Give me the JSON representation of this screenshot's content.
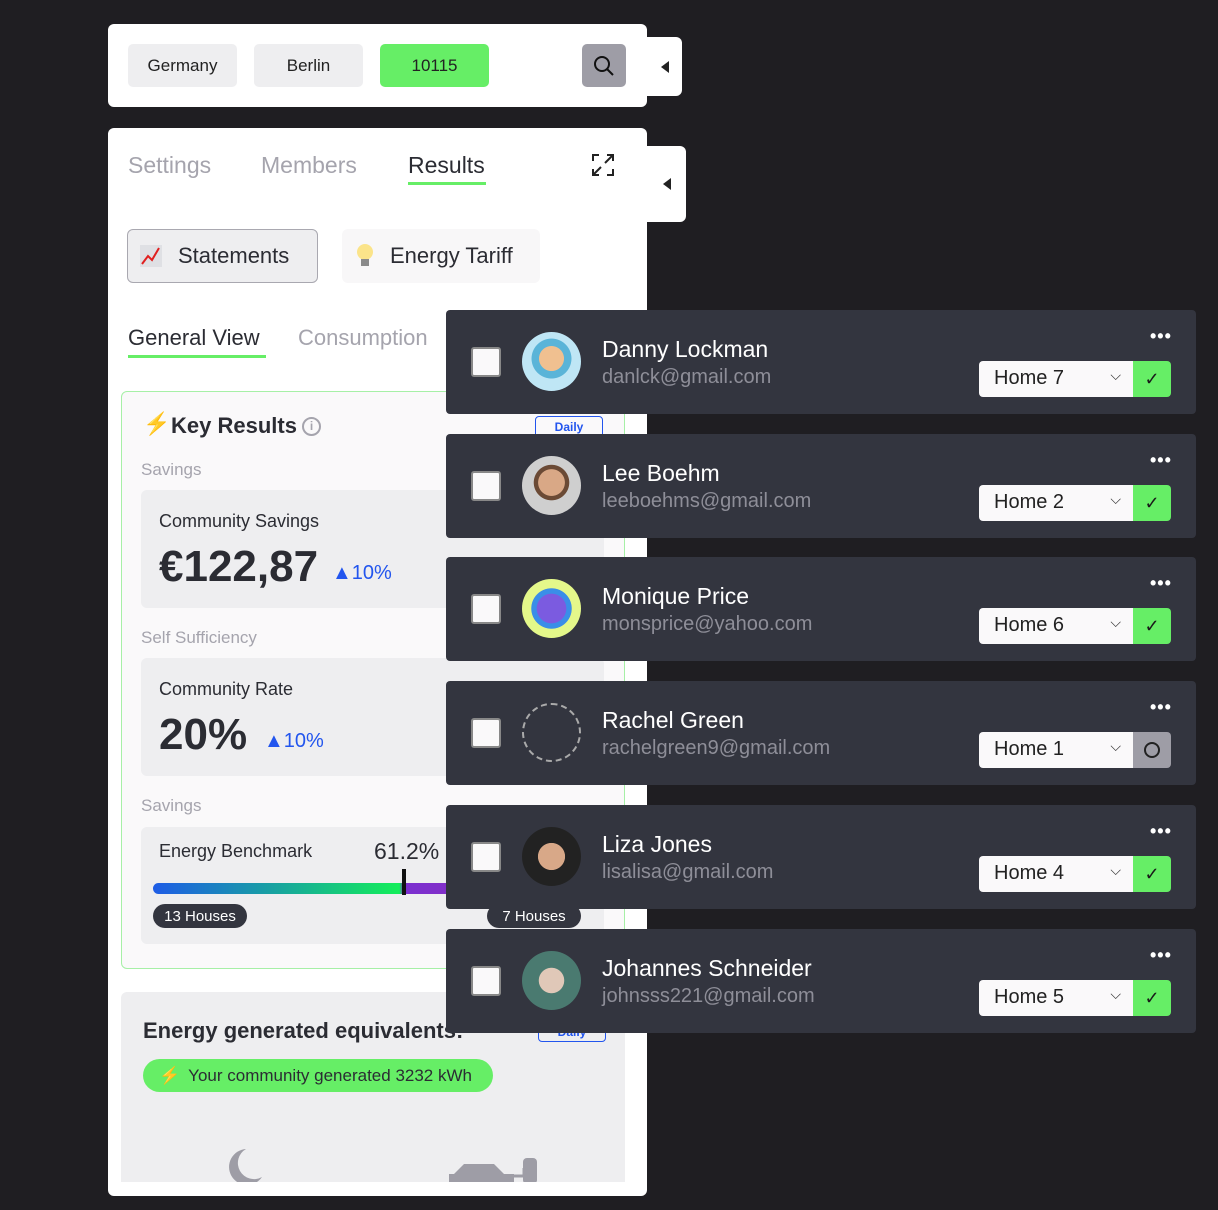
{
  "location": {
    "country": "Germany",
    "city": "Berlin",
    "postcode": "10115"
  },
  "tabs": [
    {
      "label": "Settings"
    },
    {
      "label": "Members"
    },
    {
      "label": "Results"
    }
  ],
  "buttons": {
    "statements": "Statements",
    "energy_tariff": "Energy Tariff"
  },
  "subtabs": [
    {
      "label": "General View"
    },
    {
      "label": "Consumption"
    }
  ],
  "key_results": {
    "title": "Key Results",
    "period": "Daily",
    "savings_label": "Savings",
    "community_savings": {
      "label": "Community Savings",
      "value": "€122,87",
      "change": "10%"
    },
    "self_sufficiency_label": "Self Sufficiency",
    "community_rate": {
      "label": "Community Rate",
      "value": "20%",
      "change": "10%"
    },
    "savings_label_2": "Savings",
    "benchmark": {
      "label": "Energy Benchmark",
      "value": "61.2%",
      "marker_percent": 61.2,
      "left_houses": "13 Houses",
      "right_houses": "7 Houses"
    }
  },
  "equivalents": {
    "title": "Energy generated equivalents:",
    "period": "Daily",
    "generated": "Your community generated 3232 kWh"
  },
  "members": [
    {
      "name": "Danny Lockman",
      "email": "danlck@gmail.com",
      "home": "Home 7",
      "status": "confirmed"
    },
    {
      "name": "Lee Boehm",
      "email": "leeboehms@gmail.com",
      "home": "Home 2",
      "status": "confirmed"
    },
    {
      "name": "Monique Price",
      "email": "monsprice@yahoo.com",
      "home": "Home 6",
      "status": "confirmed"
    },
    {
      "name": "Rachel Green",
      "email": "rachelgreen9@gmail.com",
      "home": "Home 1",
      "status": "pending"
    },
    {
      "name": "Liza Jones",
      "email": "lisalisa@gmail.com",
      "home": "Home 4",
      "status": "confirmed"
    },
    {
      "name": "Johannes Schneider",
      "email": "johnsss221@gmail.com",
      "home": "Home 5",
      "status": "confirmed"
    }
  ],
  "colors": {
    "accent": "#66ee66",
    "blue": "#2255ee",
    "row_bg": "#33353f",
    "page_bg": "#1f1e22"
  }
}
